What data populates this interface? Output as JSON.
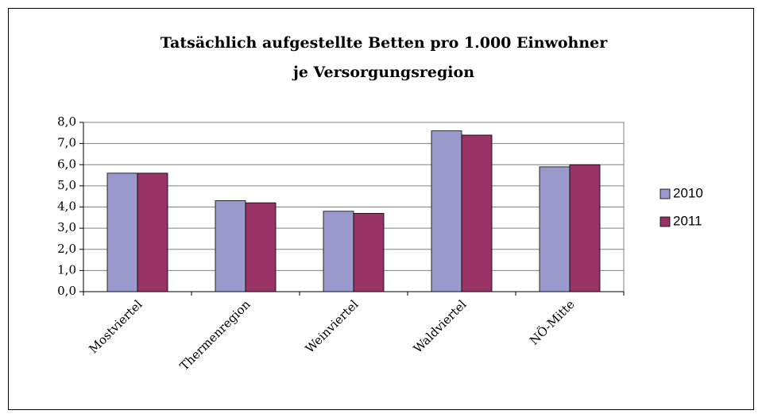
{
  "chart_data": {
    "type": "bar",
    "title": [
      "Tatsächlich aufgestellte Betten pro 1.000 Einwohner",
      "je Versorgungsregion"
    ],
    "categories": [
      "Mostviertel",
      "Thermenregion",
      "Weinviertel",
      "Waldviertel",
      "NÖ-Mitte"
    ],
    "series": [
      {
        "name": "2010",
        "color": "#9999cc",
        "values": [
          5.6,
          4.3,
          3.8,
          7.6,
          5.9
        ]
      },
      {
        "name": "2011",
        "color": "#993366",
        "values": [
          5.6,
          4.2,
          3.7,
          7.4,
          6.0
        ]
      }
    ],
    "ylim": [
      0,
      8
    ],
    "yticks": [
      {
        "value": 0,
        "label": "0,0"
      },
      {
        "value": 1,
        "label": "1,0"
      },
      {
        "value": 2,
        "label": "2,0"
      },
      {
        "value": 3,
        "label": "3,0"
      },
      {
        "value": 4,
        "label": "4,0"
      },
      {
        "value": 5,
        "label": "5,0"
      },
      {
        "value": 6,
        "label": "6,0"
      },
      {
        "value": 7,
        "label": "7,0"
      },
      {
        "value": 8,
        "label": "8,0"
      }
    ],
    "grid": true,
    "legend": "right"
  }
}
